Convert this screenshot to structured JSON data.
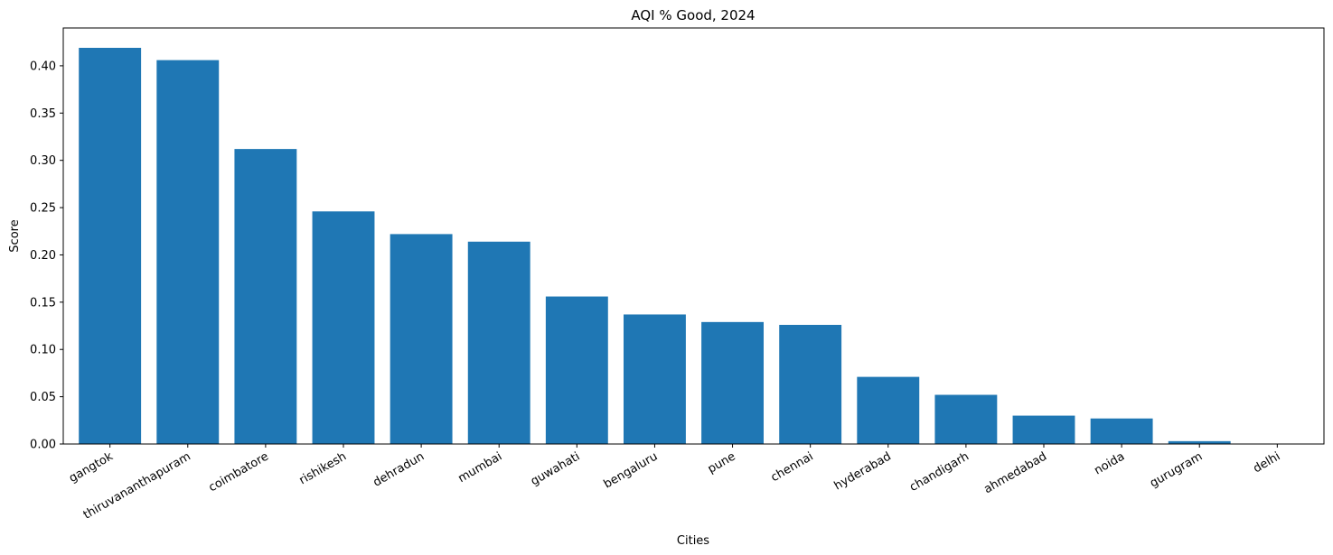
{
  "chart_data": {
    "type": "bar",
    "title": "AQI % Good, 2024",
    "xlabel": "Cities",
    "ylabel": "Score",
    "categories": [
      "gangtok",
      "thiruvananthapuram",
      "coimbatore",
      "rishikesh",
      "dehradun",
      "mumbai",
      "guwahati",
      "bengaluru",
      "pune",
      "chennai",
      "hyderabad",
      "chandigarh",
      "ahmedabad",
      "noida",
      "gurugram",
      "delhi"
    ],
    "values": [
      0.419,
      0.406,
      0.312,
      0.246,
      0.222,
      0.214,
      0.156,
      0.137,
      0.129,
      0.126,
      0.071,
      0.052,
      0.03,
      0.027,
      0.003,
      0.0
    ],
    "ylim": [
      0,
      0.44
    ],
    "yticks": [
      "0.00",
      "0.05",
      "0.10",
      "0.15",
      "0.20",
      "0.25",
      "0.30",
      "0.35",
      "0.40"
    ],
    "bar_color": "#1f77b4",
    "grid": false,
    "legend": "none",
    "xtick_rotation": 30
  }
}
